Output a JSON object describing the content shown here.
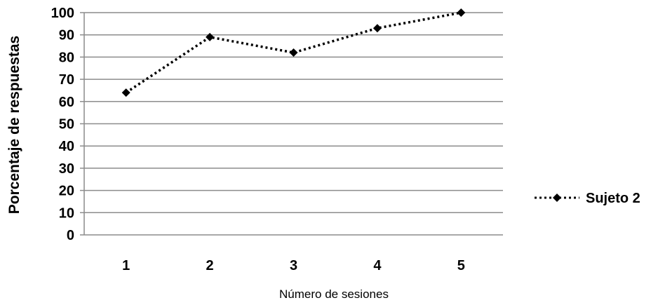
{
  "chart_data": {
    "type": "line",
    "xlabel": "Número de sesiones",
    "ylabel": "Porcentaje de respuestas",
    "categories": [
      "1",
      "2",
      "3",
      "4",
      "5"
    ],
    "ylim": [
      0,
      100
    ],
    "yticks": [
      "0",
      "10",
      "20",
      "30",
      "40",
      "50",
      "60",
      "70",
      "80",
      "90",
      "100"
    ],
    "grid": "horizontal",
    "legend_position": "right",
    "series": [
      {
        "name": "Sujeto 2",
        "values": [
          64,
          89,
          82,
          93,
          100
        ],
        "line_style": "dotted",
        "marker": "diamond",
        "color": "#000000"
      }
    ]
  }
}
